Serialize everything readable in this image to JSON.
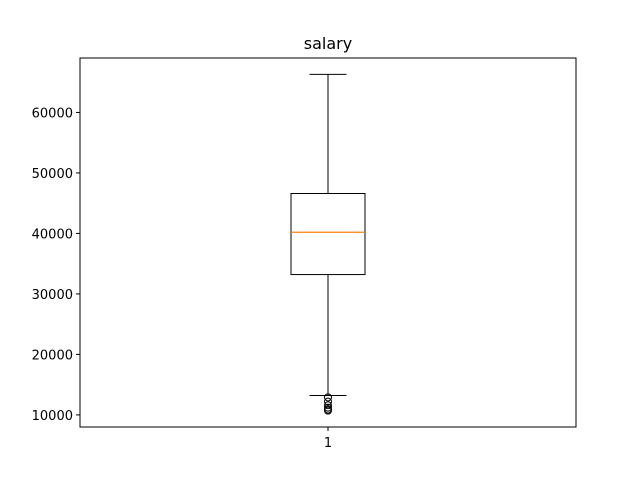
{
  "chart_data": {
    "type": "boxplot",
    "title": "salary",
    "xlabel": "",
    "ylabel": "",
    "categories": [
      "1"
    ],
    "ylim": [
      8000,
      69000
    ],
    "yticks": [
      10000,
      20000,
      30000,
      40000,
      50000,
      60000
    ],
    "ytick_labels": [
      "10000",
      "20000",
      "30000",
      "40000",
      "50000",
      "60000"
    ],
    "boxes": [
      {
        "category": "1",
        "whisker_low": 13200,
        "q1": 33200,
        "median": 40200,
        "q3": 46600,
        "whisker_high": 66300,
        "outliers": [
          12900,
          12200,
          11600,
          11200,
          10900,
          10700
        ]
      }
    ],
    "colors": {
      "box": "#000000",
      "median": "#ff7f0e",
      "outlier": "#000000"
    },
    "grid": false
  }
}
